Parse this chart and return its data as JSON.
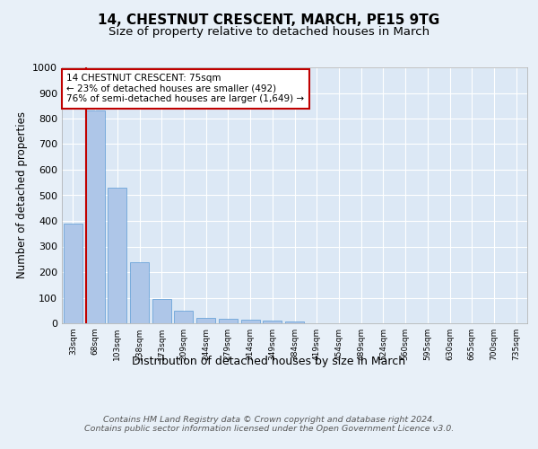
{
  "title": "14, CHESTNUT CRESCENT, MARCH, PE15 9TG",
  "subtitle": "Size of property relative to detached houses in March",
  "xlabel": "Distribution of detached houses by size in March",
  "ylabel": "Number of detached properties",
  "bar_labels": [
    "33sqm",
    "68sqm",
    "103sqm",
    "138sqm",
    "173sqm",
    "209sqm",
    "244sqm",
    "279sqm",
    "314sqm",
    "349sqm",
    "384sqm",
    "419sqm",
    "454sqm",
    "489sqm",
    "524sqm",
    "560sqm",
    "595sqm",
    "630sqm",
    "665sqm",
    "700sqm",
    "735sqm"
  ],
  "bar_values": [
    390,
    830,
    530,
    240,
    93,
    50,
    20,
    18,
    14,
    9,
    8,
    0,
    0,
    0,
    0,
    0,
    0,
    0,
    0,
    0,
    0
  ],
  "bar_color": "#aec6e8",
  "bar_edge_color": "#5b9bd5",
  "highlight_bar_index": 1,
  "highlight_color": "#c00000",
  "annotation_text": "14 CHESTNUT CRESCENT: 75sqm\n← 23% of detached houses are smaller (492)\n76% of semi-detached houses are larger (1,649) →",
  "annotation_box_color": "#c00000",
  "ylim": [
    0,
    1000
  ],
  "yticks": [
    0,
    100,
    200,
    300,
    400,
    500,
    600,
    700,
    800,
    900,
    1000
  ],
  "bg_color": "#e8f0f8",
  "plot_bg_color": "#dce8f5",
  "footer_text": "Contains HM Land Registry data © Crown copyright and database right 2024.\nContains public sector information licensed under the Open Government Licence v3.0.",
  "title_fontsize": 11,
  "subtitle_fontsize": 9.5,
  "xlabel_fontsize": 9,
  "ylabel_fontsize": 8.5,
  "grid_color": "#ffffff"
}
